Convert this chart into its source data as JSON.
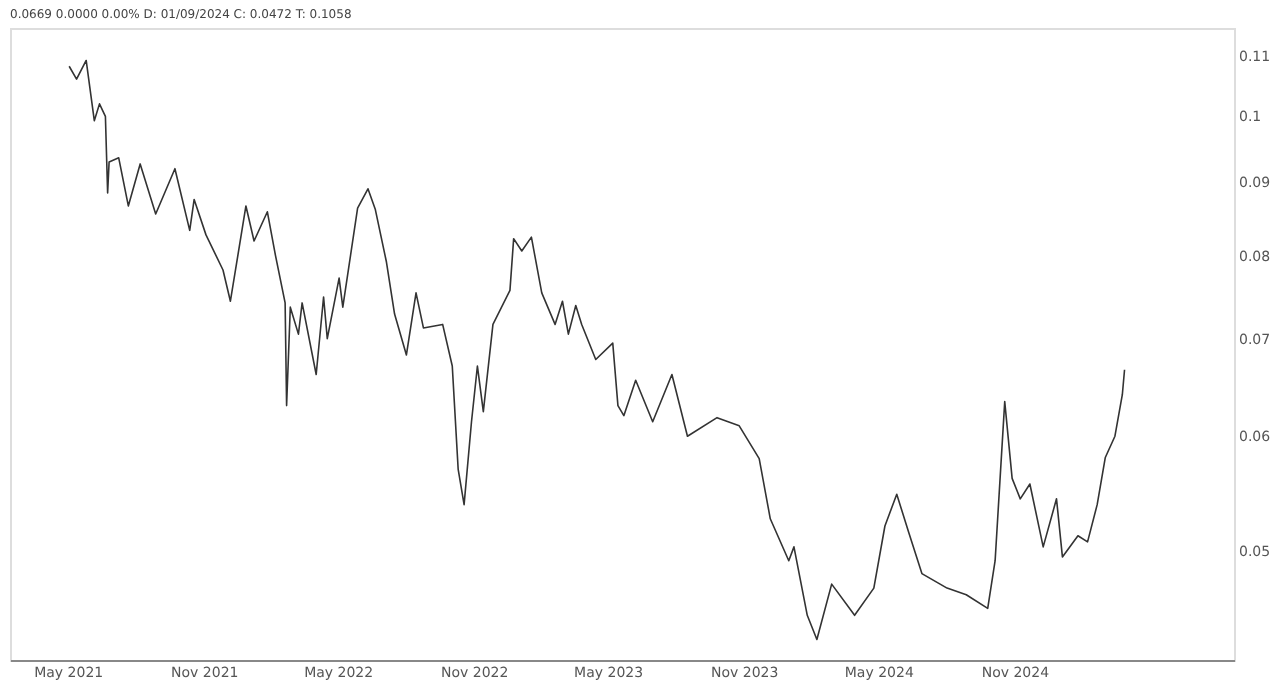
{
  "chart_data": {
    "type": "line",
    "title": "0.0669 0.0000 0.00% D: 01/09/2024 C: 0.0472 T: 0.1058",
    "log": "y",
    "grid": false,
    "legend": false,
    "marker": "none",
    "line_style": "solid",
    "xlim": [
      "2021-02-12",
      "2025-08-25"
    ],
    "xticks": [
      {
        "value": "2021-05-01",
        "label": "May 2021"
      },
      {
        "value": "2021-11-01",
        "label": "Nov 2021"
      },
      {
        "value": "2022-05-01",
        "label": "May 2022"
      },
      {
        "value": "2022-11-01",
        "label": "Nov 2022"
      },
      {
        "value": "2023-05-01",
        "label": "May 2023"
      },
      {
        "value": "2023-11-01",
        "label": "Nov 2023"
      },
      {
        "value": "2024-05-01",
        "label": "May 2024"
      },
      {
        "value": "2024-11-01",
        "label": "Nov 2024"
      }
    ],
    "ylim": [
      0.042,
      0.115
    ],
    "yticks": [
      0.05,
      0.06,
      0.07,
      0.08,
      0.09,
      0.1,
      0.11
    ],
    "x": [
      "2021-05-03",
      "2021-05-13",
      "2021-05-26",
      "2021-06-06",
      "2021-06-13",
      "2021-06-21",
      "2021-06-24",
      "2021-06-26",
      "2021-07-09",
      "2021-07-22",
      "2021-08-07",
      "2021-08-28",
      "2021-09-23",
      "2021-10-13",
      "2021-10-19",
      "2021-11-04",
      "2021-11-27",
      "2021-12-07",
      "2021-12-28",
      "2022-01-08",
      "2022-01-26",
      "2022-02-06",
      "2022-02-19",
      "2022-02-21",
      "2022-02-26",
      "2022-03-09",
      "2022-03-14",
      "2022-04-02",
      "2022-04-12",
      "2022-04-17",
      "2022-05-03",
      "2022-05-08",
      "2022-05-28",
      "2022-06-11",
      "2022-06-21",
      "2022-07-06",
      "2022-07-17",
      "2022-08-02",
      "2022-08-15",
      "2022-08-25",
      "2022-09-20",
      "2022-10-03",
      "2022-10-11",
      "2022-10-19",
      "2022-10-29",
      "2022-11-06",
      "2022-11-14",
      "2022-11-27",
      "2022-12-20",
      "2022-12-25",
      "2023-01-05",
      "2023-01-18",
      "2023-02-01",
      "2023-02-19",
      "2023-03-01",
      "2023-03-09",
      "2023-03-19",
      "2023-03-27",
      "2023-04-15",
      "2023-05-08",
      "2023-05-15",
      "2023-05-23",
      "2023-06-08",
      "2023-07-01",
      "2023-07-27",
      "2023-08-17",
      "2023-09-26",
      "2023-10-26",
      "2023-11-22",
      "2023-12-07",
      "2024-01-01",
      "2024-01-08",
      "2024-01-26",
      "2024-02-08",
      "2024-02-28",
      "2024-03-30",
      "2024-04-25",
      "2024-05-10",
      "2024-05-26",
      "2024-06-11",
      "2024-06-29",
      "2024-08-02",
      "2024-08-28",
      "2024-09-26",
      "2024-10-06",
      "2024-10-19",
      "2024-10-29",
      "2024-11-09",
      "2024-11-22",
      "2024-12-10",
      "2024-12-28",
      "2025-01-05",
      "2025-01-26",
      "2025-02-08",
      "2025-02-21",
      "2025-03-04",
      "2025-03-17",
      "2025-03-27",
      "2025-03-30"
    ],
    "series": [
      {
        "color": "#333333",
        "values": [
          0.1082,
          0.106,
          0.1092,
          0.0992,
          0.1019,
          0.0999,
          0.0884,
          0.0929,
          0.0935,
          0.0866,
          0.0926,
          0.0855,
          0.0919,
          0.0833,
          0.0875,
          0.0827,
          0.0782,
          0.0744,
          0.0866,
          0.0819,
          0.0858,
          0.08,
          0.0742,
          0.063,
          0.0737,
          0.0706,
          0.0742,
          0.0662,
          0.0749,
          0.0701,
          0.0772,
          0.0737,
          0.0863,
          0.089,
          0.0861,
          0.0792,
          0.0729,
          0.0683,
          0.0754,
          0.0713,
          0.0717,
          0.0671,
          0.0569,
          0.0538,
          0.0614,
          0.0671,
          0.0624,
          0.0717,
          0.0757,
          0.0822,
          0.0806,
          0.0824,
          0.0754,
          0.0717,
          0.0744,
          0.0706,
          0.0739,
          0.0717,
          0.0678,
          0.0696,
          0.063,
          0.062,
          0.0656,
          0.0614,
          0.0662,
          0.06,
          0.0618,
          0.061,
          0.0579,
          0.0526,
          0.0492,
          0.0503,
          0.0451,
          0.0434,
          0.0474,
          0.0451,
          0.0471,
          0.052,
          0.0547,
          0.0515,
          0.0482,
          0.0471,
          0.0466,
          0.0456,
          0.0492,
          0.0634,
          0.0561,
          0.0543,
          0.0556,
          0.0503,
          0.0543,
          0.0495,
          0.0512,
          0.0507,
          0.0538,
          0.058,
          0.06,
          0.0641,
          0.0667
        ]
      }
    ]
  }
}
